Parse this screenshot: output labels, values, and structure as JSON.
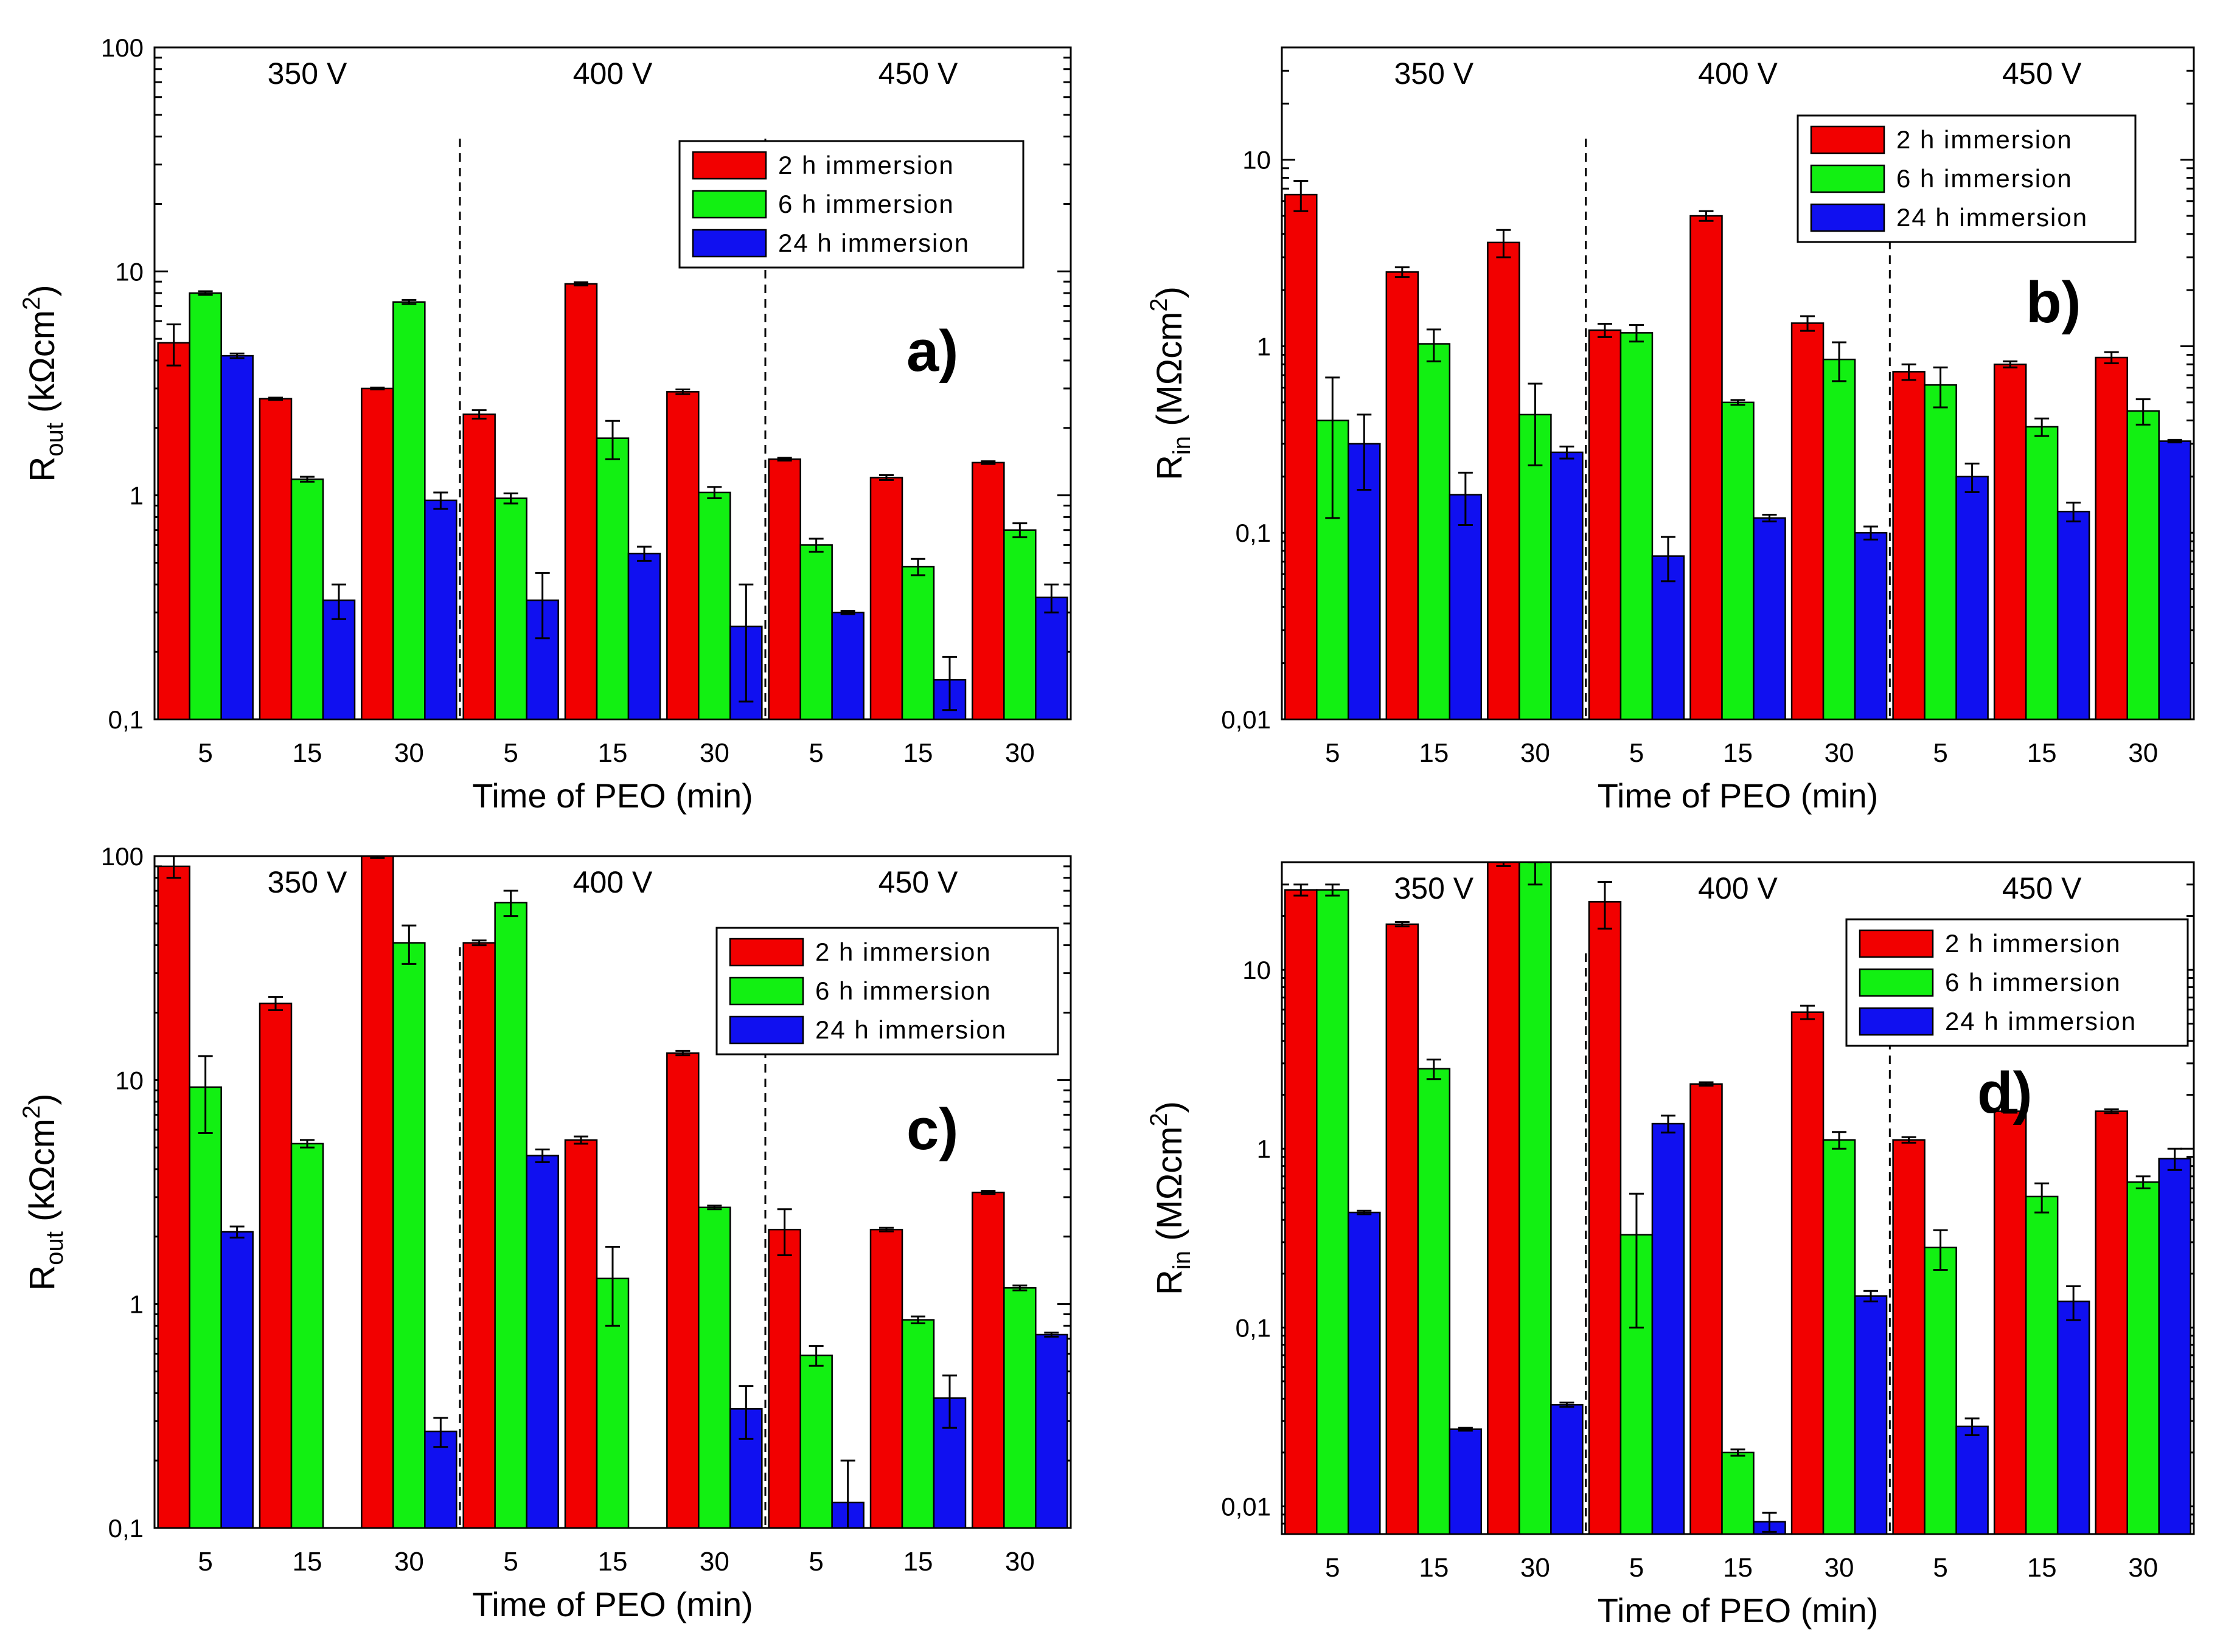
{
  "figure": {
    "series_colors": {
      "2 h immersion": "#f20000",
      "6 h immersion": "#12f012",
      "24 h immersion": "#1010f0"
    },
    "edge_color": "#000000",
    "background": "#ffffff"
  },
  "chart_data": [
    {
      "id": "a",
      "type": "bar",
      "panel_label": "a)",
      "title": "",
      "xlabel": "Time of PEO (min)",
      "ylabel": {
        "main": "R",
        "sub": "out",
        "unit_pre": " (kΩcm",
        "sup": "2",
        "unit_post": ")"
      },
      "yscale": "log",
      "ylim": [
        0.1,
        100
      ],
      "yticks": [
        0.1,
        1,
        10,
        100
      ],
      "ytick_labels": [
        "0,1",
        "1",
        "10",
        "100"
      ],
      "groups": [
        {
          "label": "350 V",
          "categories": [
            "5",
            "15",
            "30"
          ]
        },
        {
          "label": "400 V",
          "categories": [
            "5",
            "15",
            "30"
          ]
        },
        {
          "label": "450 V",
          "categories": [
            "5",
            "15",
            "30"
          ]
        }
      ],
      "legend": {
        "placement": "top-right",
        "entries": [
          "2 h immersion",
          "6 h immersion",
          "24 h immersion"
        ]
      },
      "series": [
        {
          "name": "2 h immersion",
          "values": [
            4.8,
            2.7,
            3.0,
            2.3,
            8.8,
            2.9,
            1.45,
            1.2,
            1.4
          ],
          "errors": [
            1.0,
            0.03,
            0.03,
            0.1,
            0.15,
            0.07,
            0.02,
            0.03,
            0.02
          ]
        },
        {
          "name": "6 h immersion",
          "values": [
            8.0,
            1.18,
            7.3,
            0.97,
            1.8,
            1.03,
            0.6,
            0.48,
            0.7
          ],
          "errors": [
            0.15,
            0.03,
            0.15,
            0.05,
            0.35,
            0.06,
            0.04,
            0.04,
            0.05
          ]
        },
        {
          "name": "24 h immersion",
          "values": [
            4.2,
            0.34,
            0.95,
            0.34,
            0.55,
            0.26,
            0.3,
            0.15,
            0.35
          ],
          "errors": [
            0.1,
            0.06,
            0.08,
            0.11,
            0.04,
            0.14,
            0.005,
            0.04,
            0.05
          ]
        }
      ]
    },
    {
      "id": "b",
      "type": "bar",
      "panel_label": "b)",
      "title": "",
      "xlabel": "Time of PEO (min)",
      "ylabel": {
        "main": "R",
        "sub": "in",
        "unit_pre": " (MΩcm",
        "sup": "2",
        "unit_post": ")"
      },
      "yscale": "log",
      "ylim": [
        0.01,
        40
      ],
      "yticks": [
        0.01,
        0.1,
        1,
        10
      ],
      "ytick_labels": [
        "0,01",
        "0,1",
        "1",
        "10"
      ],
      "groups": [
        {
          "label": "350 V",
          "categories": [
            "5",
            "15",
            "30"
          ]
        },
        {
          "label": "400 V",
          "categories": [
            "5",
            "15",
            "30"
          ]
        },
        {
          "label": "450 V",
          "categories": [
            "5",
            "15",
            "30"
          ]
        }
      ],
      "legend": {
        "placement": "top-right",
        "entries": [
          "2 h immersion",
          "6 h immersion",
          "24 h immersion"
        ]
      },
      "series": [
        {
          "name": "2 h immersion",
          "values": [
            6.5,
            2.5,
            3.6,
            1.22,
            5.0,
            1.33,
            0.73,
            0.8,
            0.87
          ],
          "errors": [
            1.2,
            0.15,
            0.6,
            0.1,
            0.3,
            0.12,
            0.07,
            0.03,
            0.06
          ]
        },
        {
          "name": "6 h immersion",
          "values": [
            0.4,
            1.03,
            0.43,
            1.18,
            0.5,
            0.85,
            0.62,
            0.37,
            0.45
          ],
          "errors": [
            0.28,
            0.2,
            0.2,
            0.12,
            0.015,
            0.2,
            0.15,
            0.04,
            0.07
          ]
        },
        {
          "name": "24 h immersion",
          "values": [
            0.3,
            0.16,
            0.27,
            0.075,
            0.12,
            0.1,
            0.2,
            0.13,
            0.31
          ],
          "errors": [
            0.13,
            0.05,
            0.02,
            0.02,
            0.005,
            0.008,
            0.035,
            0.015,
            0.005
          ]
        }
      ]
    },
    {
      "id": "c",
      "type": "bar",
      "panel_label": "c)",
      "title": "",
      "xlabel": "Time of PEO (min)",
      "ylabel": {
        "main": "R",
        "sub": "out",
        "unit_pre": " (kΩcm",
        "sup": "2",
        "unit_post": ")"
      },
      "yscale": "log",
      "ylim": [
        0.1,
        100
      ],
      "yticks": [
        0.1,
        1,
        10,
        100
      ],
      "ytick_labels": [
        "0,1",
        "1",
        "10",
        "100"
      ],
      "groups": [
        {
          "label": "350 V",
          "categories": [
            "5",
            "15",
            "30"
          ]
        },
        {
          "label": "400 V",
          "categories": [
            "5",
            "15",
            "30"
          ]
        },
        {
          "label": "450 V",
          "categories": [
            "5",
            "15",
            "30"
          ]
        }
      ],
      "legend": {
        "placement": "center-right",
        "entries": [
          "2 h immersion",
          "6 h immersion",
          "24 h immersion"
        ]
      },
      "series": [
        {
          "name": "2 h immersion",
          "values": [
            90,
            22,
            100,
            41,
            5.4,
            13.2,
            2.15,
            2.15,
            3.15
          ],
          "errors": [
            10,
            1.5,
            2,
            1,
            0.2,
            0.3,
            0.5,
            0.04,
            0.05
          ]
        },
        {
          "name": "6 h immersion",
          "values": [
            9.3,
            5.2,
            41,
            62,
            1.3,
            2.7,
            0.59,
            0.85,
            1.18
          ],
          "errors": [
            3.5,
            0.2,
            8,
            8,
            0.5,
            0.05,
            0.06,
            0.03,
            0.03
          ]
        },
        {
          "name": "24 h immersion",
          "values": [
            2.1,
            null,
            0.27,
            4.6,
            null,
            0.34,
            0.13,
            0.38,
            0.73
          ],
          "errors": [
            0.12,
            null,
            0.04,
            0.3,
            null,
            0.09,
            0.07,
            0.1,
            0.015
          ]
        }
      ]
    },
    {
      "id": "d",
      "type": "bar",
      "panel_label": "d)",
      "title": "",
      "xlabel": "Time of PEO (min)",
      "ylabel": {
        "main": "R",
        "sub": "in",
        "unit_pre": " (MΩcm",
        "sup": "2",
        "unit_post": ")"
      },
      "yscale": "log",
      "ylim": [
        0.007,
        40
      ],
      "yticks": [
        0.01,
        0.1,
        1,
        10
      ],
      "ytick_labels": [
        "0,01",
        "0,1",
        "1",
        "10"
      ],
      "groups": [
        {
          "label": "350 V",
          "categories": [
            "5",
            "15",
            "30"
          ]
        },
        {
          "label": "400 V",
          "categories": [
            "5",
            "15",
            "30"
          ]
        },
        {
          "label": "450 V",
          "categories": [
            "5",
            "15",
            "30"
          ]
        }
      ],
      "legend": {
        "placement": "top-right",
        "entries": [
          "2 h immersion",
          "6 h immersion",
          "24 h immersion"
        ]
      },
      "series": [
        {
          "name": "2 h immersion",
          "values": [
            28,
            18,
            40,
            24,
            2.3,
            5.8,
            1.12,
            1.62,
            1.62
          ],
          "errors": [
            2,
            0.5,
            2,
            7,
            0.05,
            0.5,
            0.04,
            0.03,
            0.04
          ]
        },
        {
          "name": "6 h immersion",
          "values": [
            28,
            2.8,
            40,
            0.33,
            0.02,
            1.12,
            0.28,
            0.54,
            0.65
          ],
          "errors": [
            2,
            0.35,
            10,
            0.23,
            0.0008,
            0.12,
            0.07,
            0.1,
            0.05
          ]
        },
        {
          "name": "24 h immersion",
          "values": [
            0.44,
            0.027,
            0.037,
            1.38,
            0.0082,
            0.15,
            0.028,
            0.14,
            0.88
          ],
          "errors": [
            0.01,
            0.0005,
            0.001,
            0.15,
            0.001,
            0.01,
            0.003,
            0.03,
            0.12
          ]
        }
      ]
    }
  ]
}
